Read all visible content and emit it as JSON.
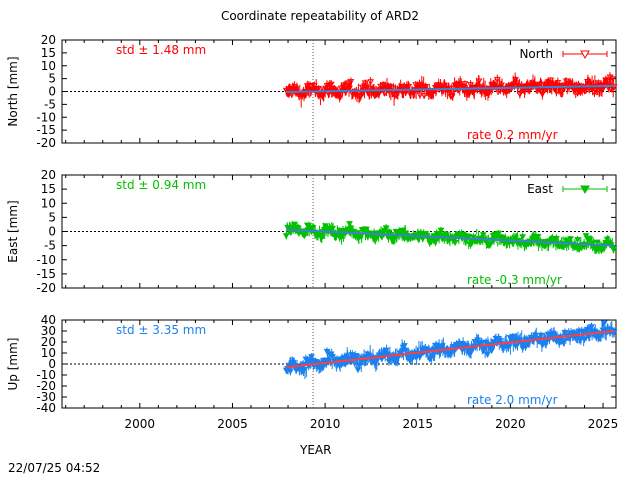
{
  "title": "Coordinate repeatability of ARD2",
  "timestamp": "22/07/25 04:52",
  "chart_data": [
    {
      "type": "scatter",
      "panel": "north",
      "ylabel": "North [mm]",
      "legend": "North",
      "legend_position": "top-right",
      "std_label": "std ± 1.48 mm",
      "rate_label": "rate  0.2 mm/yr",
      "color": "#ff0000",
      "trend_color": "#3f7fd6",
      "ylim": [
        -20,
        20
      ],
      "yticks": [
        -20,
        -15,
        -10,
        -5,
        0,
        5,
        10,
        15,
        20
      ],
      "xlim": [
        1995.8,
        2025.7
      ],
      "data_start": 2007.9,
      "data_end": 2025.6,
      "trend": [
        [
          2007.9,
          -0.2
        ],
        [
          2025.6,
          2.2
        ]
      ],
      "scatter_amplitude": 3.0,
      "marker": "open-triangle-down"
    },
    {
      "type": "scatter",
      "panel": "east",
      "ylabel": "East [mm]",
      "legend": "East",
      "legend_position": "top-right",
      "std_label": "std ± 0.94 mm",
      "rate_label": "rate -0.3 mm/yr",
      "color": "#00c000",
      "trend_color": "#3f7fd6",
      "ylim": [
        -20,
        20
      ],
      "yticks": [
        -20,
        -15,
        -10,
        -5,
        0,
        5,
        10,
        15,
        20
      ],
      "xlim": [
        1995.8,
        2025.7
      ],
      "data_start": 2007.9,
      "data_end": 2025.6,
      "trend": [
        [
          2007.9,
          0.6
        ],
        [
          2025.6,
          -5.0
        ]
      ],
      "scatter_amplitude": 2.2,
      "marker": "filled-triangle-down"
    },
    {
      "type": "scatter",
      "panel": "up",
      "ylabel": "Up [mm]",
      "legend": "",
      "std_label": "std ± 3.35 mm",
      "rate_label": "rate  2.0 mm/yr",
      "color": "#1a80f0",
      "trend_color": "#ff3f3f",
      "ylim": [
        -40,
        40
      ],
      "yticks": [
        -40,
        -30,
        -20,
        -10,
        0,
        10,
        20,
        30,
        40
      ],
      "xlim": [
        1995.8,
        2025.7
      ],
      "data_start": 2007.9,
      "data_end": 2025.6,
      "trend": [
        [
          2007.9,
          -3.0
        ],
        [
          2025.6,
          30.0
        ]
      ],
      "scatter_amplitude": 7.0,
      "marker": "errorbar"
    }
  ],
  "shared_x": {
    "xlabel": "YEAR",
    "xticks": [
      2000,
      2005,
      2010,
      2015,
      2020,
      2025
    ],
    "reference_year": 2009.35
  }
}
